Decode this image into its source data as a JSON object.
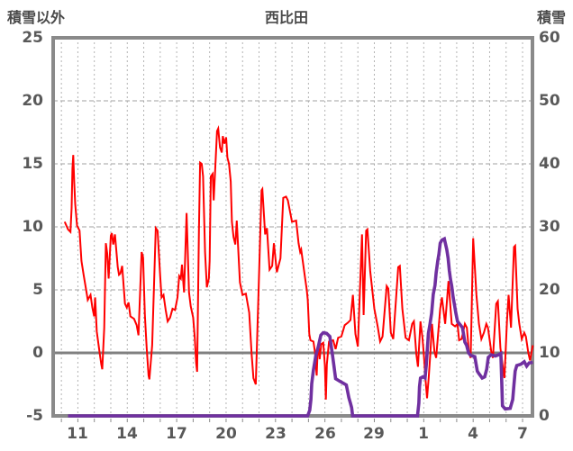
{
  "header": {
    "left_axis_title": "積雪以外",
    "station_title": "西比田",
    "right_axis_title": "積雪"
  },
  "colors": {
    "red_line": "#ff0000",
    "purple_line": "#7030a0",
    "border": "#8a8a8a",
    "zero_line": "#808080",
    "grid_vertical": "#b3b3b3",
    "grid_horizontal": "#a0a0a0",
    "label_text": "#595959",
    "title_text": "#4a4a4a"
  },
  "chart_data": {
    "type": "line",
    "title": "西比田",
    "legend_position": "none",
    "grid": {
      "vertical_dashed_every_day": true,
      "horizontal_dashed_at_left_values": [
        20,
        15,
        10,
        5
      ],
      "solid_zero_line_left": 0
    },
    "left_axis": {
      "label": "積雪以外",
      "ticks": [
        25,
        20,
        15,
        10,
        5,
        0,
        -5
      ],
      "range": [
        -5,
        25
      ]
    },
    "right_axis": {
      "label": "積雪",
      "ticks": [
        60,
        50,
        40,
        30,
        20,
        10,
        0
      ],
      "range": [
        0,
        60
      ]
    },
    "x_axis": {
      "day_range": [
        9.5,
        38.6
      ],
      "tick_days": [
        11,
        14,
        17,
        20,
        23,
        26,
        29,
        32,
        35,
        38
      ],
      "tick_labels": [
        "11",
        "14",
        "17",
        "20",
        "23",
        "26",
        "29",
        "1",
        "4",
        "7"
      ]
    },
    "series": [
      {
        "name": "積雪以外",
        "axis": "left",
        "color": "#ff0000",
        "width": 2,
        "points": [
          [
            10.2,
            10.4
          ],
          [
            10.4,
            9.8
          ],
          [
            10.55,
            9.6
          ],
          [
            10.62,
            11.5
          ],
          [
            10.67,
            14.6
          ],
          [
            10.72,
            15.7
          ],
          [
            10.78,
            13.5
          ],
          [
            10.84,
            11.8
          ],
          [
            10.95,
            10.1
          ],
          [
            11.1,
            9.7
          ],
          [
            11.22,
            7.3
          ],
          [
            11.35,
            6.2
          ],
          [
            11.5,
            5.0
          ],
          [
            11.6,
            4.2
          ],
          [
            11.77,
            4.6
          ],
          [
            11.88,
            3.6
          ],
          [
            11.99,
            2.9
          ],
          [
            12.05,
            4.4
          ],
          [
            12.15,
            1.7
          ],
          [
            12.32,
            0.0
          ],
          [
            12.42,
            -0.9
          ],
          [
            12.48,
            -1.3
          ],
          [
            12.6,
            2.0
          ],
          [
            12.7,
            8.7
          ],
          [
            12.78,
            7.9
          ],
          [
            12.87,
            5.9
          ],
          [
            13.0,
            9.3
          ],
          [
            13.06,
            9.5
          ],
          [
            13.15,
            8.6
          ],
          [
            13.25,
            9.4
          ],
          [
            13.42,
            6.8
          ],
          [
            13.5,
            6.2
          ],
          [
            13.58,
            6.3
          ],
          [
            13.69,
            6.9
          ],
          [
            13.86,
            3.9
          ],
          [
            13.97,
            3.6
          ],
          [
            14.08,
            4.0
          ],
          [
            14.19,
            2.9
          ],
          [
            14.41,
            2.7
          ],
          [
            14.57,
            2.2
          ],
          [
            14.68,
            1.4
          ],
          [
            14.87,
            8.0
          ],
          [
            14.96,
            7.6
          ],
          [
            15.07,
            3.0
          ],
          [
            15.18,
            0.4
          ],
          [
            15.29,
            -1.8
          ],
          [
            15.34,
            -2.1
          ],
          [
            15.51,
            0.6
          ],
          [
            15.73,
            9.9
          ],
          [
            15.84,
            9.7
          ],
          [
            16.0,
            6.1
          ],
          [
            16.08,
            4.4
          ],
          [
            16.2,
            4.6
          ],
          [
            16.33,
            3.4
          ],
          [
            16.45,
            2.5
          ],
          [
            16.6,
            2.8
          ],
          [
            16.75,
            3.5
          ],
          [
            16.9,
            3.4
          ],
          [
            17.05,
            4.4
          ],
          [
            17.15,
            6.1
          ],
          [
            17.25,
            5.9
          ],
          [
            17.32,
            7.0
          ],
          [
            17.45,
            4.8
          ],
          [
            17.6,
            11.1
          ],
          [
            17.75,
            4.8
          ],
          [
            17.85,
            3.7
          ],
          [
            18.0,
            2.8
          ],
          [
            18.1,
            1.2
          ],
          [
            18.18,
            -0.8
          ],
          [
            18.24,
            -1.5
          ],
          [
            18.35,
            9.7
          ],
          [
            18.42,
            15.1
          ],
          [
            18.52,
            15.0
          ],
          [
            18.6,
            14.0
          ],
          [
            18.72,
            8.0
          ],
          [
            18.83,
            5.2
          ],
          [
            18.95,
            5.9
          ],
          [
            19.0,
            7.3
          ],
          [
            19.07,
            14.0
          ],
          [
            19.18,
            14.2
          ],
          [
            19.25,
            12.1
          ],
          [
            19.45,
            17.6
          ],
          [
            19.52,
            17.8
          ],
          [
            19.63,
            16.3
          ],
          [
            19.74,
            15.9
          ],
          [
            19.8,
            17.2
          ],
          [
            19.9,
            16.6
          ],
          [
            20.0,
            17.1
          ],
          [
            20.08,
            15.5
          ],
          [
            20.18,
            15.0
          ],
          [
            20.28,
            13.6
          ],
          [
            20.35,
            10.4
          ],
          [
            20.45,
            9.2
          ],
          [
            20.56,
            8.6
          ],
          [
            20.65,
            10.5
          ],
          [
            20.84,
            5.6
          ],
          [
            21.0,
            4.6
          ],
          [
            21.2,
            4.7
          ],
          [
            21.4,
            3.2
          ],
          [
            21.55,
            -0.1
          ],
          [
            21.66,
            -2.0
          ],
          [
            21.8,
            -2.5
          ],
          [
            21.98,
            5.4
          ],
          [
            22.15,
            12.9
          ],
          [
            22.2,
            13.0
          ],
          [
            22.37,
            9.4
          ],
          [
            22.48,
            9.9
          ],
          [
            22.64,
            6.6
          ],
          [
            22.8,
            6.9
          ],
          [
            22.9,
            8.7
          ],
          [
            23.08,
            6.4
          ],
          [
            23.3,
            7.5
          ],
          [
            23.47,
            12.3
          ],
          [
            23.64,
            12.4
          ],
          [
            23.75,
            12.1
          ],
          [
            24.0,
            10.4
          ],
          [
            24.25,
            10.5
          ],
          [
            24.4,
            8.7
          ],
          [
            24.5,
            8.0
          ],
          [
            24.56,
            8.2
          ],
          [
            24.8,
            5.9
          ],
          [
            24.9,
            5.0
          ],
          [
            24.96,
            4.2
          ],
          [
            25.05,
            1.5
          ],
          [
            25.12,
            1.0
          ],
          [
            25.3,
            0.9
          ],
          [
            25.4,
            0.0
          ],
          [
            25.5,
            -1.8
          ],
          [
            25.56,
            0.2
          ],
          [
            25.62,
            0.6
          ],
          [
            25.68,
            -0.5
          ],
          [
            25.78,
            0.7
          ],
          [
            25.9,
            0.8
          ],
          [
            26.0,
            -1.0
          ],
          [
            26.06,
            -3.7
          ],
          [
            26.12,
            -0.9
          ],
          [
            26.25,
            0.9
          ],
          [
            26.5,
            1.0
          ],
          [
            26.65,
            0.3
          ],
          [
            26.8,
            1.2
          ],
          [
            27.0,
            1.3
          ],
          [
            27.2,
            2.2
          ],
          [
            27.4,
            2.4
          ],
          [
            27.55,
            2.6
          ],
          [
            27.7,
            4.6
          ],
          [
            27.85,
            1.5
          ],
          [
            28.0,
            0.5
          ],
          [
            28.25,
            9.4
          ],
          [
            28.35,
            3.0
          ],
          [
            28.5,
            9.7
          ],
          [
            28.58,
            9.8
          ],
          [
            28.75,
            6.5
          ],
          [
            29.0,
            3.5
          ],
          [
            29.2,
            2.1
          ],
          [
            29.35,
            0.9
          ],
          [
            29.5,
            1.3
          ],
          [
            29.75,
            5.3
          ],
          [
            29.85,
            5.1
          ],
          [
            30.0,
            1.6
          ],
          [
            30.15,
            1.1
          ],
          [
            30.45,
            6.8
          ],
          [
            30.55,
            6.9
          ],
          [
            30.7,
            3.5
          ],
          [
            30.9,
            1.2
          ],
          [
            31.1,
            1.0
          ],
          [
            31.3,
            2.3
          ],
          [
            31.4,
            2.5
          ],
          [
            31.55,
            -0.1
          ],
          [
            31.65,
            -1.1
          ],
          [
            31.8,
            2.5
          ],
          [
            31.92,
            1.2
          ],
          [
            32.0,
            0.0
          ],
          [
            32.1,
            -2.0
          ],
          [
            32.2,
            -3.6
          ],
          [
            32.3,
            -2.0
          ],
          [
            32.4,
            0.0
          ],
          [
            32.5,
            2.3
          ],
          [
            32.65,
            0.1
          ],
          [
            32.75,
            -0.4
          ],
          [
            33.0,
            3.5
          ],
          [
            33.1,
            4.4
          ],
          [
            33.3,
            2.3
          ],
          [
            33.5,
            5.7
          ],
          [
            33.7,
            2.3
          ],
          [
            33.9,
            2.1
          ],
          [
            34.05,
            2.3
          ],
          [
            34.15,
            1.0
          ],
          [
            34.3,
            1.1
          ],
          [
            34.5,
            2.3
          ],
          [
            34.62,
            2.0
          ],
          [
            34.75,
            0.0
          ],
          [
            34.85,
            -0.4
          ],
          [
            35.0,
            9.1
          ],
          [
            35.2,
            4.6
          ],
          [
            35.35,
            2.3
          ],
          [
            35.5,
            1.1
          ],
          [
            35.65,
            1.6
          ],
          [
            35.8,
            2.3
          ],
          [
            35.9,
            2.0
          ],
          [
            36.1,
            0.1
          ],
          [
            36.2,
            -0.4
          ],
          [
            36.4,
            3.9
          ],
          [
            36.5,
            4.1
          ],
          [
            36.65,
            0.4
          ],
          [
            36.8,
            -1.1
          ],
          [
            36.9,
            -2.0
          ],
          [
            37.05,
            2.5
          ],
          [
            37.15,
            4.6
          ],
          [
            37.3,
            2.0
          ],
          [
            37.48,
            8.4
          ],
          [
            37.55,
            8.5
          ],
          [
            37.7,
            3.5
          ],
          [
            37.8,
            2.3
          ],
          [
            37.95,
            1.1
          ],
          [
            38.1,
            1.6
          ],
          [
            38.2,
            1.3
          ],
          [
            38.35,
            0.0
          ],
          [
            38.45,
            -0.6
          ],
          [
            38.55,
            0.1
          ],
          [
            38.62,
            0.6
          ]
        ]
      },
      {
        "name": "積雪",
        "axis": "right",
        "color": "#7030a0",
        "width": 3.6,
        "points": [
          [
            10.4,
            0
          ],
          [
            24.95,
            0
          ],
          [
            25.08,
            0.9
          ],
          [
            25.15,
            2.6
          ],
          [
            25.2,
            5.1
          ],
          [
            25.3,
            7.3
          ],
          [
            25.45,
            9.6
          ],
          [
            25.6,
            11.0
          ],
          [
            25.75,
            12.8
          ],
          [
            25.9,
            13.2
          ],
          [
            26.1,
            13.1
          ],
          [
            26.3,
            12.6
          ],
          [
            26.45,
            9.8
          ],
          [
            26.55,
            7.9
          ],
          [
            26.65,
            5.9
          ],
          [
            26.9,
            5.5
          ],
          [
            27.1,
            5.2
          ],
          [
            27.3,
            4.9
          ],
          [
            27.45,
            2.9
          ],
          [
            27.55,
            2.0
          ],
          [
            27.62,
            1.3
          ],
          [
            27.68,
            0
          ],
          [
            31.62,
            0
          ],
          [
            31.7,
            2.0
          ],
          [
            31.74,
            4.6
          ],
          [
            31.8,
            6.0
          ],
          [
            31.95,
            6.2
          ],
          [
            32.08,
            6.0
          ],
          [
            32.15,
            8.0
          ],
          [
            32.2,
            9.9
          ],
          [
            32.28,
            13.1
          ],
          [
            32.38,
            14.6
          ],
          [
            32.48,
            16.3
          ],
          [
            32.58,
            19.3
          ],
          [
            32.68,
            20.7
          ],
          [
            32.75,
            22.7
          ],
          [
            32.85,
            24.6
          ],
          [
            32.92,
            25.7
          ],
          [
            33.0,
            27.4
          ],
          [
            33.1,
            27.9
          ],
          [
            33.25,
            28.1
          ],
          [
            33.4,
            26.4
          ],
          [
            33.48,
            25.0
          ],
          [
            33.55,
            23.1
          ],
          [
            33.62,
            21.7
          ],
          [
            33.7,
            20.6
          ],
          [
            33.78,
            18.9
          ],
          [
            33.88,
            17.4
          ],
          [
            33.95,
            16.3
          ],
          [
            34.05,
            15.0
          ],
          [
            34.2,
            14.5
          ],
          [
            34.35,
            14.0
          ],
          [
            34.5,
            11.7
          ],
          [
            34.6,
            11.2
          ],
          [
            34.72,
            10.0
          ],
          [
            34.85,
            9.6
          ],
          [
            35.1,
            9.4
          ],
          [
            35.25,
            7.1
          ],
          [
            35.35,
            6.7
          ],
          [
            35.55,
            6.0
          ],
          [
            35.7,
            6.2
          ],
          [
            35.82,
            7.4
          ],
          [
            35.92,
            9.3
          ],
          [
            36.1,
            9.7
          ],
          [
            36.35,
            9.5
          ],
          [
            36.55,
            9.7
          ],
          [
            36.68,
            9.9
          ],
          [
            36.74,
            5.0
          ],
          [
            36.78,
            1.6
          ],
          [
            36.95,
            1.1
          ],
          [
            37.25,
            1.2
          ],
          [
            37.4,
            2.6
          ],
          [
            37.48,
            5.0
          ],
          [
            37.55,
            7.1
          ],
          [
            37.65,
            8.0
          ],
          [
            37.9,
            8.2
          ],
          [
            38.1,
            8.6
          ],
          [
            38.25,
            7.9
          ],
          [
            38.4,
            8.4
          ],
          [
            38.62,
            8.5
          ]
        ]
      }
    ]
  }
}
